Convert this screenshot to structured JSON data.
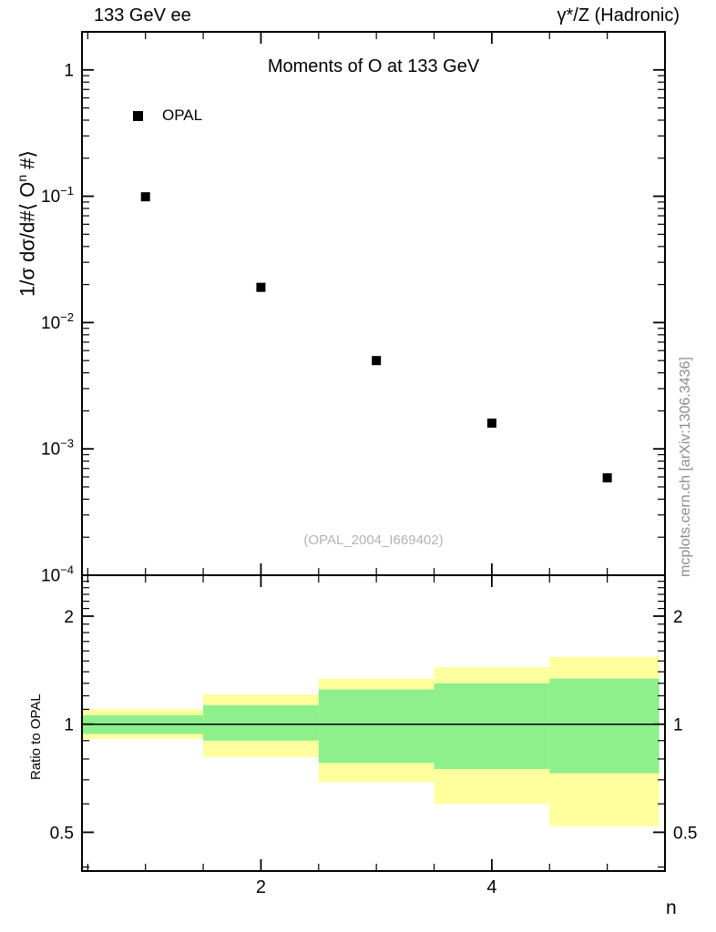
{
  "header": {
    "left": "133 GeV ee",
    "right": "γ*/Z (Hadronic)"
  },
  "main_plot": {
    "title": "Moments of O at 133 GeV",
    "ylabel_parts": {
      "pre": "1/σ  dσ/d#⟨ O",
      "sup": "n",
      "post": " #⟩"
    },
    "watermark": "(OPAL_2004_I669402)",
    "legend": [
      {
        "label": "OPAL",
        "marker": "filled-square",
        "color": "#000000"
      }
    ]
  },
  "ratio_plot": {
    "ylabel": "Ratio to OPAL"
  },
  "xaxis": {
    "label": "n"
  },
  "side_text": "mcplots.cern.ch [arXiv:1306.3436]",
  "colors": {
    "band_outer": "#ffff9e",
    "band_inner": "#8df08d",
    "marker": "#000000",
    "frame": "#000000"
  },
  "chart_data": [
    {
      "type": "scatter",
      "title": "Moments of O at 133 GeV",
      "xlabel": "n",
      "ylabel": "1/sigma dsigma/d#< O^n #>",
      "xlim": [
        0.45,
        5.5
      ],
      "ylim": [
        0.0001,
        2
      ],
      "yscale": "log",
      "xticks_major": [
        2,
        4
      ],
      "xticks_minor_step": 0.5,
      "yticks_major_exponents": [
        0,
        -1,
        -2,
        -3,
        -4
      ],
      "legend_position": "top-left",
      "grid": false,
      "series": [
        {
          "name": "OPAL",
          "marker": "filled-square",
          "color": "#000000",
          "x": [
            1,
            2,
            3,
            4,
            5
          ],
          "y": [
            0.099,
            0.019,
            0.005,
            0.0016,
            0.00059
          ]
        }
      ]
    },
    {
      "type": "area",
      "ylabel": "Ratio to OPAL",
      "xlim": [
        0.45,
        5.5
      ],
      "ylim": [
        0.39,
        2.6
      ],
      "yscale": "log",
      "yticks_major": [
        0.5,
        1,
        2
      ],
      "reference_line": 1,
      "bands": [
        {
          "x0": 0.45,
          "x1": 1.5,
          "outer": [
            0.91,
            1.1
          ],
          "inner": [
            0.94,
            1.06
          ]
        },
        {
          "x0": 1.5,
          "x1": 2.5,
          "outer": [
            0.81,
            1.21
          ],
          "inner": [
            0.9,
            1.13
          ]
        },
        {
          "x0": 2.5,
          "x1": 3.5,
          "outer": [
            0.69,
            1.34
          ],
          "inner": [
            0.78,
            1.25
          ]
        },
        {
          "x0": 3.5,
          "x1": 4.5,
          "outer": [
            0.6,
            1.44
          ],
          "inner": [
            0.75,
            1.3
          ]
        },
        {
          "x0": 4.5,
          "x1": 5.45,
          "outer": [
            0.52,
            1.54
          ],
          "inner": [
            0.73,
            1.34
          ]
        }
      ]
    }
  ]
}
